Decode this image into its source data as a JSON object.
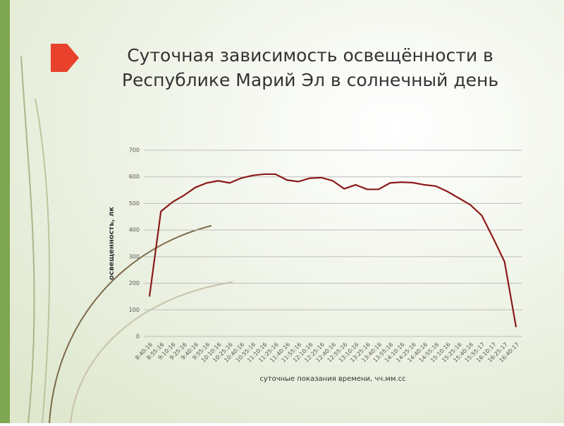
{
  "chart_data": {
    "type": "line",
    "title": "Суточная зависимость освещённости в Республике Марий Эл в солнечный день",
    "x_label": "суточные показания времени, чч.мм.сс",
    "y_label": "освещенность, лк",
    "categories": [
      "8:40:16",
      "8:55:16",
      "9:10:16",
      "9:25:16",
      "9:40:16",
      "9:55:16",
      "10:10:16",
      "10:25:16",
      "10:40:16",
      "10:55:16",
      "11:10:16",
      "11:25:16",
      "11:40:16",
      "11:55:16",
      "12:10:16",
      "12:25:16",
      "12:40:16",
      "12:55:16",
      "13:10:16",
      "13:25:16",
      "13:40:16",
      "13:55:16",
      "14:10:16",
      "14:25:16",
      "14:40:16",
      "14:55:16",
      "15:10:16",
      "15:25:16",
      "15:40:16",
      "15:55:17",
      "16:10:17",
      "16:25:17",
      "16:40:17"
    ],
    "series": [
      {
        "name": "освещенность",
        "color": "#8b1a1a",
        "values": [
          150,
          470,
          505,
          530,
          560,
          577,
          585,
          577,
          595,
          605,
          610,
          610,
          588,
          582,
          595,
          597,
          585,
          555,
          570,
          553,
          553,
          577,
          580,
          578,
          570,
          565,
          545,
          520,
          495,
          455,
          370,
          280,
          35
        ]
      }
    ],
    "ylim": [
      0,
      700
    ],
    "yticks": [
      0,
      100,
      200,
      300,
      400,
      500,
      600,
      700
    ],
    "grid": true
  }
}
